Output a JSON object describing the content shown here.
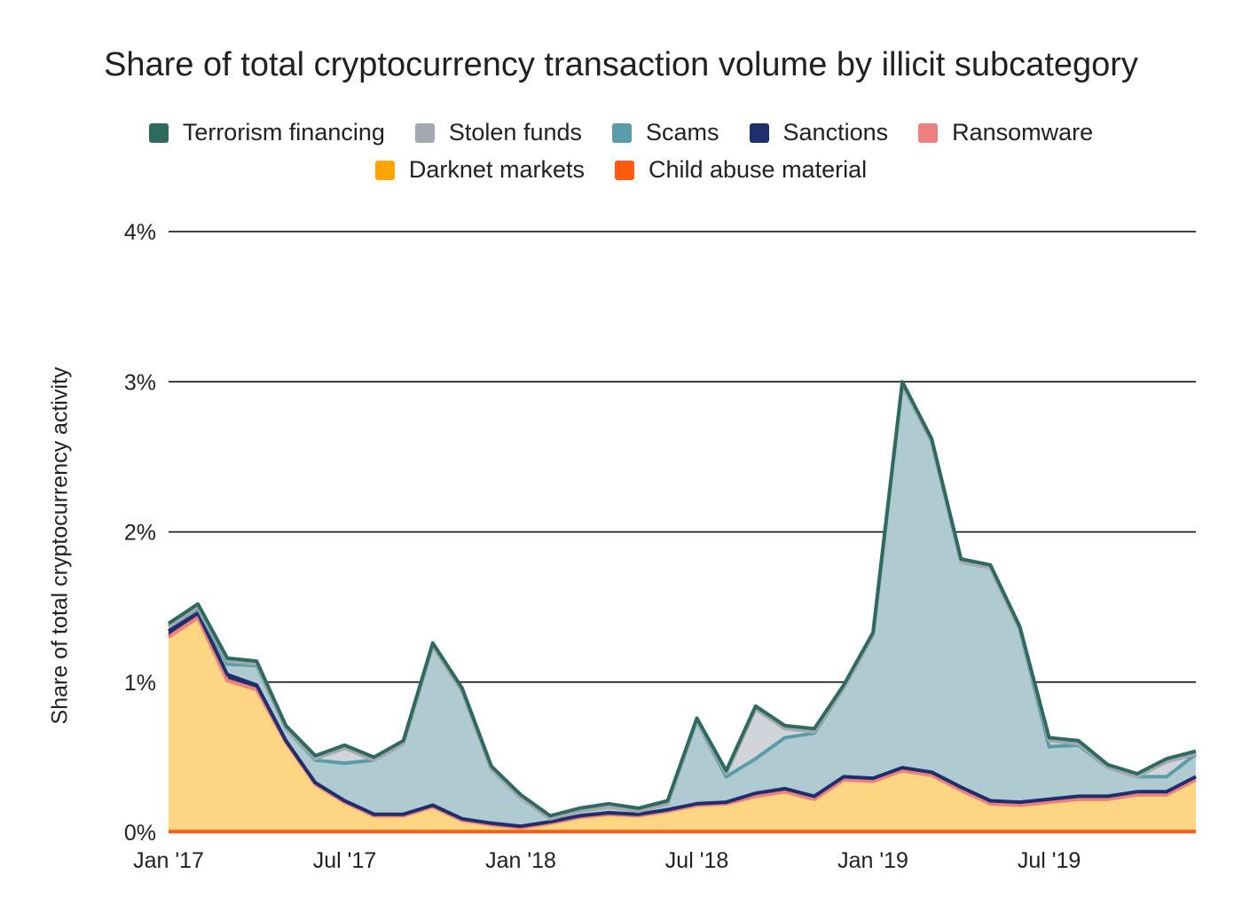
{
  "chart_data": {
    "type": "area",
    "stacked": true,
    "title": "Share of total cryptocurrency transaction volume by illicit subcategory",
    "ylabel": "Share of total cryptocurrency activity",
    "xlabel": "",
    "ylim": [
      0,
      4
    ],
    "y_ticks": [
      "0%",
      "1%",
      "2%",
      "3%",
      "4%"
    ],
    "y_tick_values": [
      0,
      1,
      2,
      3,
      4
    ],
    "x_tick_labels": [
      "Jan '17",
      "Jul '17",
      "Jan '18",
      "Jul '18",
      "Jan '19",
      "Jul '19"
    ],
    "x_tick_indices": [
      0,
      6,
      12,
      18,
      24,
      30
    ],
    "x": [
      "2017-01",
      "2017-02",
      "2017-03",
      "2017-04",
      "2017-05",
      "2017-06",
      "2017-07",
      "2017-08",
      "2017-09",
      "2017-10",
      "2017-11",
      "2017-12",
      "2018-01",
      "2018-02",
      "2018-03",
      "2018-04",
      "2018-05",
      "2018-06",
      "2018-07",
      "2018-08",
      "2018-09",
      "2018-10",
      "2018-11",
      "2018-12",
      "2019-01",
      "2019-02",
      "2019-03",
      "2019-04",
      "2019-05",
      "2019-06",
      "2019-07",
      "2019-08",
      "2019-09",
      "2019-10",
      "2019-11",
      "2019-12"
    ],
    "grid": true,
    "legend_position": "top-center",
    "series": [
      {
        "name": "Child abuse material",
        "color": "#FF5A0F",
        "values": [
          0.005,
          0.005,
          0.005,
          0.005,
          0.005,
          0.005,
          0.005,
          0.005,
          0.005,
          0.005,
          0.005,
          0.005,
          0.005,
          0.005,
          0.005,
          0.005,
          0.005,
          0.005,
          0.005,
          0.005,
          0.005,
          0.005,
          0.005,
          0.005,
          0.005,
          0.005,
          0.005,
          0.005,
          0.005,
          0.005,
          0.005,
          0.005,
          0.005,
          0.005,
          0.005,
          0.005
        ]
      },
      {
        "name": "Darknet markets",
        "color": "#FFA500",
        "fill": "#FDD583",
        "values": [
          1.295,
          1.425,
          1.005,
          0.945,
          0.595,
          0.315,
          0.195,
          0.105,
          0.105,
          0.165,
          0.075,
          0.045,
          0.025,
          0.055,
          0.095,
          0.115,
          0.105,
          0.135,
          0.175,
          0.185,
          0.235,
          0.265,
          0.215,
          0.345,
          0.335,
          0.405,
          0.375,
          0.275,
          0.185,
          0.175,
          0.195,
          0.215,
          0.215,
          0.245,
          0.245,
          0.345
        ]
      },
      {
        "name": "Ransomware",
        "color": "#F08080",
        "values": [
          0,
          0,
          0,
          0,
          0,
          0,
          0,
          0,
          0,
          0,
          0,
          0,
          0,
          0,
          0,
          0,
          0,
          0,
          0,
          0,
          0,
          0,
          0,
          0,
          0,
          0,
          0,
          0,
          0,
          0,
          0,
          0,
          0,
          0,
          0,
          0
        ]
      },
      {
        "name": "Sanctions",
        "color": "#1F2E6E",
        "values": [
          0.04,
          0.03,
          0.04,
          0.03,
          0.01,
          0.01,
          0.01,
          0.01,
          0.01,
          0.01,
          0.01,
          0.01,
          0.01,
          0.01,
          0.01,
          0.01,
          0.01,
          0.01,
          0.01,
          0.01,
          0.02,
          0.02,
          0.02,
          0.02,
          0.02,
          0.02,
          0.02,
          0.02,
          0.02,
          0.02,
          0.02,
          0.02,
          0.02,
          0.02,
          0.02,
          0.02
        ]
      },
      {
        "name": "Scams",
        "color": "#5A9CA8",
        "fill": "#AFCBD1",
        "values": [
          0.03,
          0.03,
          0.07,
          0.13,
          0.08,
          0.15,
          0.25,
          0.36,
          0.47,
          1.06,
          0.85,
          0.36,
          0.19,
          0.02,
          0.03,
          0.04,
          0.02,
          0.04,
          0.55,
          0.17,
          0.23,
          0.34,
          0.42,
          0.59,
          0.95,
          2.55,
          2.2,
          1.5,
          1.55,
          1.15,
          0.35,
          0.34,
          0.19,
          0.1,
          0.1,
          0.15
        ]
      },
      {
        "name": "Stolen funds",
        "color": "#A4A8B0",
        "fill": "#D1D4D8",
        "values": [
          0,
          0.01,
          0.02,
          0.01,
          0,
          0.01,
          0.1,
          0,
          0,
          0,
          0,
          0,
          0,
          0,
          0,
          0,
          0,
          0,
          0,
          0.02,
          0.33,
          0.06,
          0.01,
          0,
          0,
          0,
          0,
          0,
          0,
          0,
          0.04,
          0.01,
          0,
          0,
          0.1,
          0
        ]
      },
      {
        "name": "Terrorism financing",
        "color": "#2E6B5E",
        "values": [
          0.02,
          0.02,
          0.02,
          0.02,
          0.02,
          0.02,
          0.02,
          0.02,
          0.02,
          0.02,
          0.02,
          0.02,
          0.02,
          0.02,
          0.02,
          0.02,
          0.02,
          0.02,
          0.02,
          0.02,
          0.02,
          0.02,
          0.02,
          0.02,
          0.02,
          0.02,
          0.02,
          0.02,
          0.02,
          0.02,
          0.02,
          0.02,
          0.02,
          0.02,
          0.02,
          0.02
        ]
      }
    ]
  },
  "legend": {
    "row1": [
      {
        "label": "Terrorism financing",
        "color": "#2E6B5E"
      },
      {
        "label": "Stolen funds",
        "color": "#A4A8B0"
      },
      {
        "label": "Scams",
        "color": "#5A9CA8"
      },
      {
        "label": "Sanctions",
        "color": "#1F2E6E"
      },
      {
        "label": "Ransomware",
        "color": "#F08080"
      }
    ],
    "row2": [
      {
        "label": "Darknet markets",
        "color": "#FFA500"
      },
      {
        "label": "Child abuse material",
        "color": "#FF5A0F"
      }
    ]
  }
}
